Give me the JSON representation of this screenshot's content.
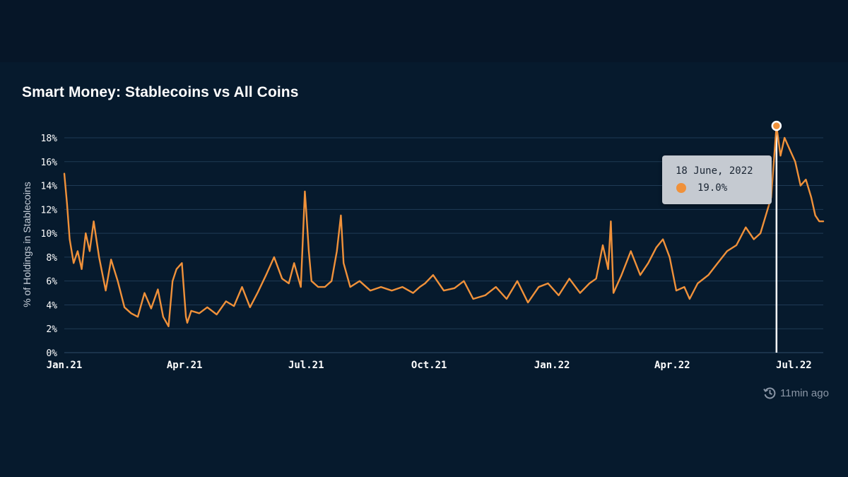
{
  "title": "Smart Money: Stablecoins vs All Coins",
  "updated": {
    "icon": "clock-refresh-icon",
    "text": "11min ago"
  },
  "tooltip": {
    "date": "18 June, 2022",
    "value": "19.0%",
    "marker_color": "#f0913a"
  },
  "colors": {
    "line": "#f0913a",
    "grid": "#1f3a55",
    "background": "#061a2d",
    "text": "#ffffff"
  },
  "chart_data": {
    "type": "line",
    "title": "Smart Money: Stablecoins vs All Coins",
    "xlabel": "",
    "ylabel": "% of Holdings in Stablecoins",
    "xlim": [
      "2021-01-01",
      "2022-07-23"
    ],
    "ylim": [
      0,
      18
    ],
    "yticks": [
      0,
      2,
      4,
      6,
      8,
      10,
      12,
      14,
      16,
      18
    ],
    "ytick_labels": [
      "0%",
      "2%",
      "4%",
      "6%",
      "8%",
      "10%",
      "12%",
      "14%",
      "16%",
      "18%"
    ],
    "xticks": [
      "2021-01-01",
      "2021-04-01",
      "2021-07-01",
      "2021-10-01",
      "2022-01-01",
      "2022-04-01",
      "2022-07-01"
    ],
    "xtick_labels": [
      "Jan.21",
      "Apr.21",
      "Jul.21",
      "Oct.21",
      "Jan.22",
      "Apr.22",
      "Jul.22"
    ],
    "grid": true,
    "highlight": {
      "x": "2022-06-18",
      "y": 19.0
    },
    "series": [
      {
        "x": [
          "2021-01-01",
          "2021-01-03",
          "2021-01-05",
          "2021-01-08",
          "2021-01-11",
          "2021-01-14",
          "2021-01-17",
          "2021-01-20",
          "2021-01-23",
          "2021-01-27",
          "2021-02-01",
          "2021-02-05",
          "2021-02-10",
          "2021-02-15",
          "2021-02-20",
          "2021-02-25",
          "2021-03-02",
          "2021-03-07",
          "2021-03-12",
          "2021-03-16",
          "2021-03-20",
          "2021-03-23",
          "2021-03-26",
          "2021-03-30",
          "2021-04-02",
          "2021-04-03",
          "2021-04-06",
          "2021-04-12",
          "2021-04-18",
          "2021-04-25",
          "2021-05-02",
          "2021-05-08",
          "2021-05-14",
          "2021-05-20",
          "2021-05-26",
          "2021-06-01",
          "2021-06-07",
          "2021-06-13",
          "2021-06-18",
          "2021-06-22",
          "2021-06-27",
          "2021-06-30",
          "2021-07-01",
          "2021-07-03",
          "2021-07-05",
          "2021-07-10",
          "2021-07-15",
          "2021-07-20",
          "2021-07-24",
          "2021-07-27",
          "2021-07-29",
          "2021-08-03",
          "2021-08-10",
          "2021-08-18",
          "2021-08-26",
          "2021-09-03",
          "2021-09-11",
          "2021-09-19",
          "2021-09-24",
          "2021-09-28",
          "2021-10-04",
          "2021-10-12",
          "2021-10-20",
          "2021-10-27",
          "2021-11-03",
          "2021-11-12",
          "2021-11-20",
          "2021-11-28",
          "2021-12-06",
          "2021-12-14",
          "2021-12-22",
          "2021-12-29",
          "2022-01-06",
          "2022-01-14",
          "2022-01-22",
          "2022-01-29",
          "2022-02-03",
          "2022-02-08",
          "2022-02-12",
          "2022-02-14",
          "2022-02-16",
          "2022-02-22",
          "2022-03-01",
          "2022-03-08",
          "2022-03-14",
          "2022-03-20",
          "2022-03-25",
          "2022-03-30",
          "2022-04-04",
          "2022-04-10",
          "2022-04-14",
          "2022-04-20",
          "2022-04-28",
          "2022-05-05",
          "2022-05-12",
          "2022-05-19",
          "2022-05-26",
          "2022-06-01",
          "2022-06-06",
          "2022-06-10",
          "2022-06-14",
          "2022-06-18",
          "2022-06-21",
          "2022-06-24",
          "2022-06-28",
          "2022-07-02",
          "2022-07-06",
          "2022-07-10",
          "2022-07-14",
          "2022-07-17",
          "2022-07-20",
          "2022-07-23"
        ],
        "y": [
          15.0,
          12.5,
          9.5,
          7.5,
          8.5,
          7.0,
          10.0,
          8.5,
          11.0,
          8.0,
          5.2,
          7.8,
          6.0,
          3.8,
          3.3,
          3.0,
          5.0,
          3.7,
          5.3,
          3.0,
          2.2,
          6.0,
          7.0,
          7.5,
          3.0,
          2.5,
          3.5,
          3.3,
          3.8,
          3.2,
          4.3,
          3.9,
          5.5,
          3.8,
          5.1,
          6.5,
          8.0,
          6.2,
          5.8,
          7.5,
          5.5,
          13.5,
          12.0,
          8.5,
          6.0,
          5.5,
          5.5,
          6.0,
          8.5,
          11.5,
          7.5,
          5.5,
          6.0,
          5.2,
          5.5,
          5.2,
          5.5,
          5.0,
          5.5,
          5.8,
          6.5,
          5.2,
          5.4,
          6.0,
          4.5,
          4.8,
          5.5,
          4.5,
          6.0,
          4.2,
          5.5,
          5.8,
          4.8,
          6.2,
          5.0,
          5.8,
          6.2,
          9.0,
          7.0,
          11.0,
          5.0,
          6.5,
          8.5,
          6.5,
          7.5,
          8.8,
          9.5,
          8.0,
          5.2,
          5.5,
          4.5,
          5.8,
          6.5,
          7.5,
          8.5,
          9.0,
          10.5,
          9.5,
          10.0,
          11.5,
          13.0,
          19.0,
          16.5,
          18.0,
          17.0,
          16.0,
          14.0,
          14.5,
          13.0,
          11.5,
          11.0,
          11.0
        ]
      }
    ]
  }
}
